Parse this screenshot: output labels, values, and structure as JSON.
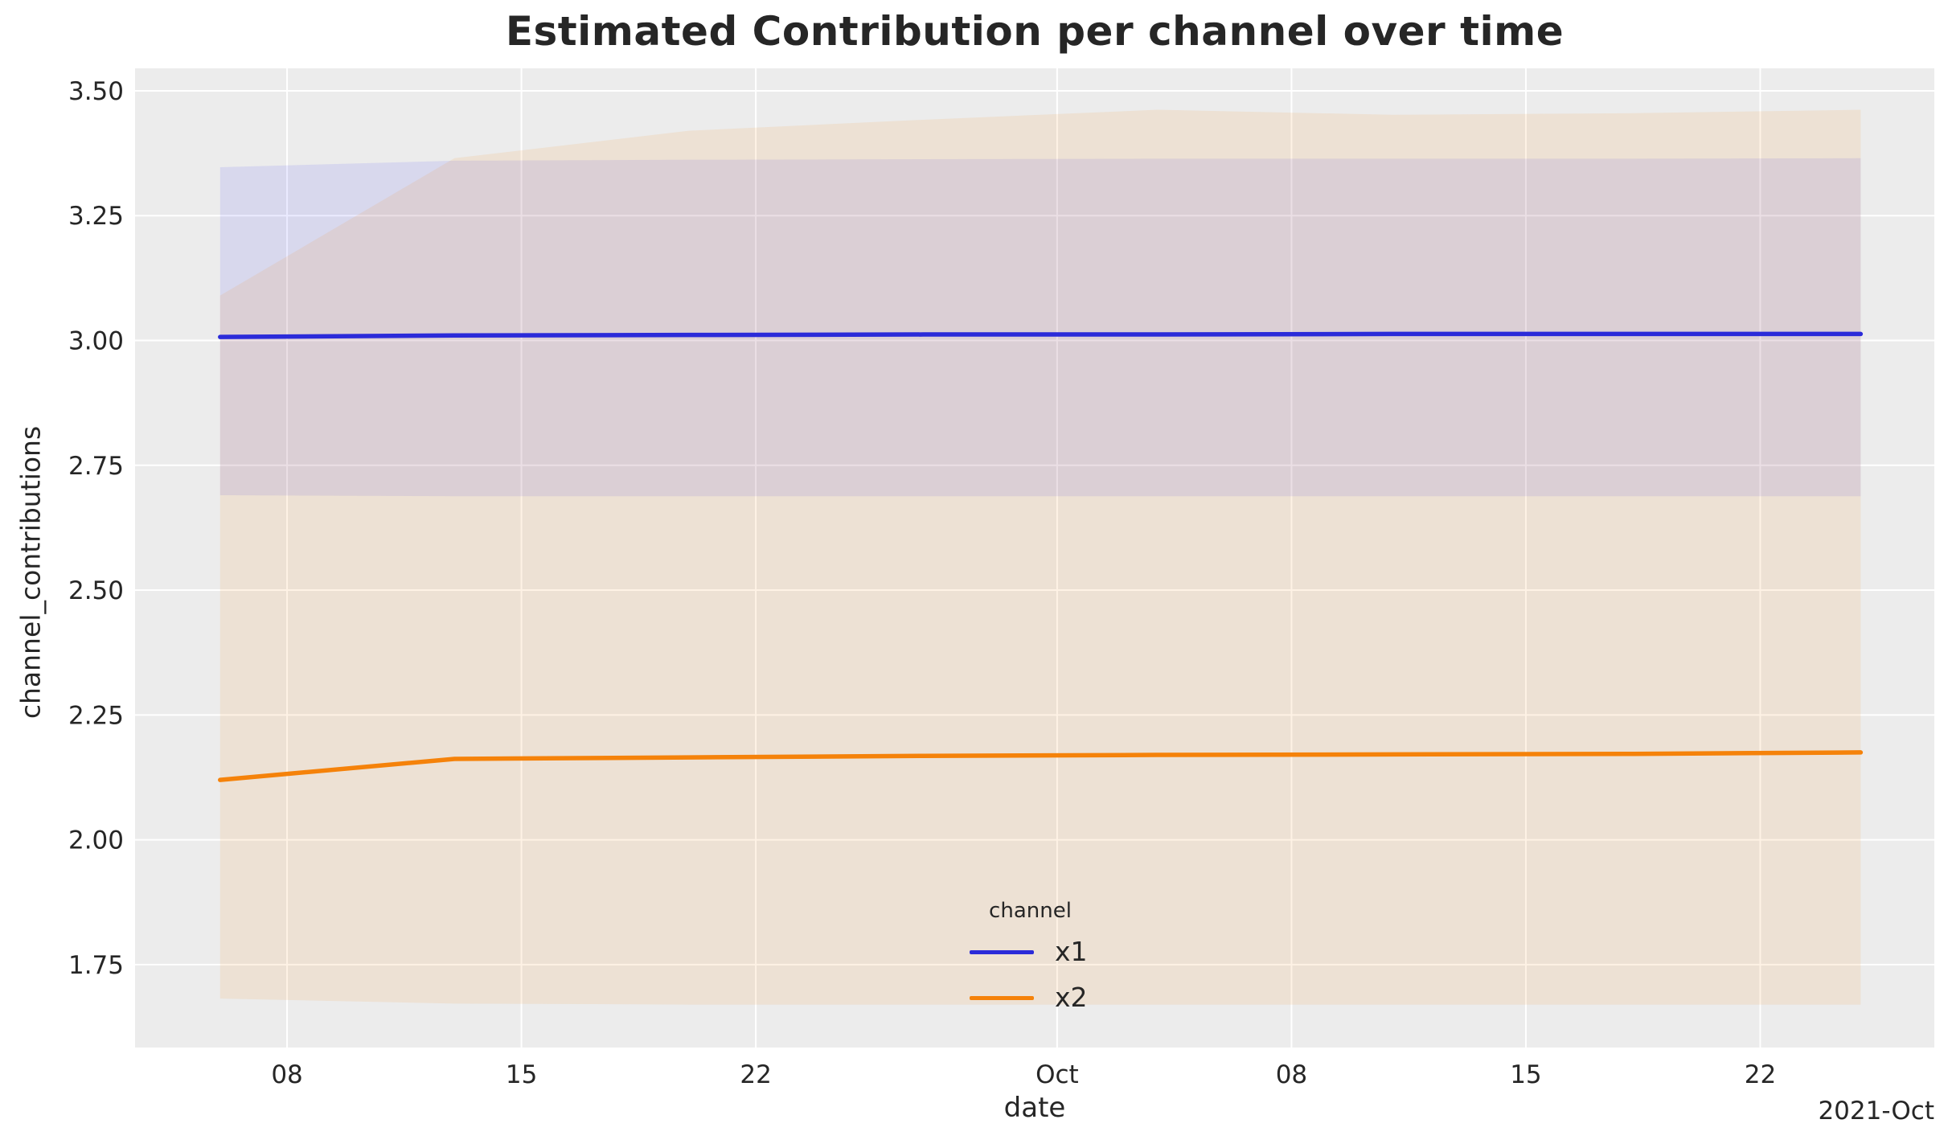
{
  "chart_data": {
    "type": "line",
    "title": "Estimated Contribution per channel over time",
    "xlabel": "date",
    "ylabel": "channel_contributions",
    "x_axis_offset_label": "2021-Oct",
    "grid": true,
    "x_dates": [
      "2021-09-06",
      "2021-09-13",
      "2021-09-20",
      "2021-09-27",
      "2021-10-04",
      "2021-10-11",
      "2021-10-18",
      "2021-10-25"
    ],
    "x_days": [
      0,
      7,
      14,
      21,
      28,
      35,
      42,
      49
    ],
    "xlim_days": [
      -2.54,
      51.2
    ],
    "ylim": [
      1.584,
      3.545
    ],
    "xticks": [
      {
        "day": 2,
        "label": "08"
      },
      {
        "day": 9,
        "label": "15"
      },
      {
        "day": 16,
        "label": "22"
      },
      {
        "day": 25,
        "label": "Oct"
      },
      {
        "day": 32,
        "label": "08"
      },
      {
        "day": 39,
        "label": "15"
      },
      {
        "day": 46,
        "label": "22"
      }
    ],
    "yticks": [
      {
        "value": 3.5,
        "label": "3.50"
      },
      {
        "value": 3.25,
        "label": "3.25"
      },
      {
        "value": 3.0,
        "label": "3.00"
      },
      {
        "value": 2.75,
        "label": "2.75"
      },
      {
        "value": 2.5,
        "label": "2.50"
      },
      {
        "value": 2.25,
        "label": "2.25"
      },
      {
        "value": 2.0,
        "label": "2.00"
      },
      {
        "value": 1.75,
        "label": "1.75"
      }
    ],
    "series": [
      {
        "name": "x1",
        "color": "#2b2bd9",
        "band_color": "rgba(10,10,255,0.085)",
        "values": [
          3.007,
          3.01,
          3.011,
          3.012,
          3.012,
          3.013,
          3.013,
          3.013
        ],
        "band_upper": [
          3.347,
          3.36,
          3.362,
          3.363,
          3.364,
          3.364,
          3.364,
          3.365
        ],
        "band_lower": [
          2.69,
          2.688,
          2.688,
          2.688,
          2.688,
          2.688,
          2.688,
          2.688
        ]
      },
      {
        "name": "x2",
        "color": "#f5820a",
        "band_color": "rgba(249,133,22,0.11)",
        "values": [
          2.12,
          2.162,
          2.165,
          2.168,
          2.17,
          2.171,
          2.172,
          2.175
        ],
        "band_upper": [
          3.09,
          3.365,
          3.42,
          3.442,
          3.462,
          3.452,
          3.455,
          3.462
        ],
        "band_lower": [
          1.682,
          1.672,
          1.67,
          1.67,
          1.67,
          1.67,
          1.67,
          1.67
        ]
      }
    ],
    "legend": {
      "title": "channel",
      "position": "lower-center-right",
      "entries": [
        {
          "label": "x1",
          "color": "#2b2bd9"
        },
        {
          "label": "x2",
          "color": "#f5820a"
        }
      ]
    },
    "styles": {
      "plot_bg": "#ececec",
      "grid_color": "#ffffff",
      "text_color": "#262626",
      "tick_font_size": 31
    }
  }
}
